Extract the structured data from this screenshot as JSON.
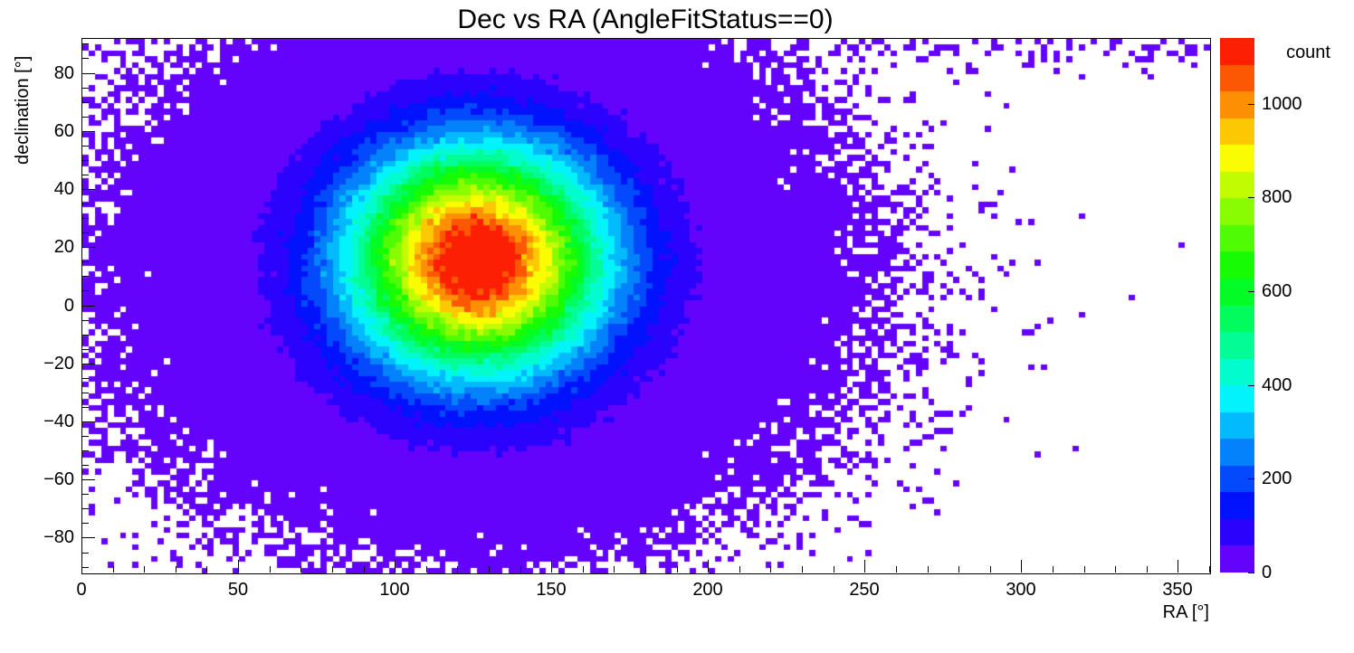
{
  "chart_data": {
    "type": "heatmap",
    "title": "Dec vs RA (AngleFitStatus==0)",
    "xlabel": "RA [°]",
    "ylabel": "declination [°]",
    "zlabel": "count",
    "xlim": [
      0,
      360
    ],
    "ylim": [
      -92,
      92
    ],
    "zlim": [
      0,
      1140
    ],
    "grid": false,
    "x_ticks_major": [
      0,
      50,
      100,
      150,
      200,
      250,
      300,
      350
    ],
    "x_tick_labels": [
      "0",
      "50",
      "100",
      "150",
      "200",
      "250",
      "300",
      "350"
    ],
    "x_minor_step": 10,
    "y_ticks_major": [
      -80,
      -60,
      -40,
      -20,
      0,
      20,
      40,
      60,
      80
    ],
    "y_tick_labels": [
      "−80",
      "−60",
      "−40",
      "−20",
      "0",
      "20",
      "40",
      "60",
      "80"
    ],
    "y_minor_step": 5,
    "colorbar_ticks": [
      0,
      200,
      400,
      600,
      800,
      1000
    ],
    "colorbar_tick_labels": [
      "0",
      "200",
      "400",
      "600",
      "800",
      "1000"
    ],
    "palette": {
      "name": "rainbow-discrete",
      "levels": 20,
      "low_to_high_colors": [
        "#7a00e6",
        "#2020ff",
        "#00a8ff",
        "#00ffff",
        "#00e640",
        "#a8ff00",
        "#ffff00",
        "#ff9900",
        "#ff0000"
      ]
    },
    "bins": {
      "nx": 180,
      "ny": 92
    },
    "peak": {
      "ra": 126,
      "dec": 16,
      "count": 1140
    },
    "model": {
      "description": "2D histogram of Dec vs RA: dense 2D-Gaussian core at (RA=126, Dec=16), broad diffuse halo, sparse speckle band near Dec=90 across all RA; empty region RA 240-360 below Dec~60",
      "seed": 20240408,
      "components": [
        {
          "kind": "gauss2d",
          "amp": 1150,
          "cx": 126,
          "cy": 16,
          "sx": 27,
          "sy": 26
        },
        {
          "kind": "gauss2d",
          "amp": 50,
          "cx": 127,
          "cy": 10,
          "sx": 46,
          "sy": 36
        },
        {
          "kind": "band",
          "amp": 0.35,
          "dec0": 90,
          "sigma": 6
        }
      ]
    }
  }
}
